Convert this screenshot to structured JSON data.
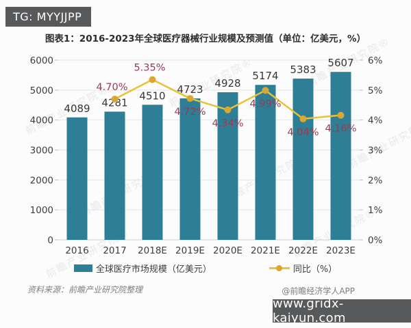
{
  "header": {
    "badge": "TG: MYYJJPP"
  },
  "chart": {
    "title": "图表1：2016-2023年全球医疗器械行业规模及预测值（单位：亿美元，%）"
  },
  "chart_data": {
    "type": "bar+line",
    "title": "图表1：2016-2023年全球医疗器械行业规模及预测值（单位：亿美元，%）",
    "categories": [
      "2016",
      "2017",
      "2018E",
      "2019E",
      "2020E",
      "2021E",
      "2022E",
      "2023E"
    ],
    "series": [
      {
        "name": "全球医疗市场规模（亿美元）",
        "type": "bar",
        "values": [
          4089,
          4281,
          4510,
          4723,
          4928,
          5174,
          5383,
          5607
        ],
        "color": "#2e7e96",
        "label_color": "#373737"
      },
      {
        "name": "同比（%）",
        "type": "line",
        "values": [
          null,
          4.7,
          5.35,
          4.72,
          4.34,
          4.99,
          4.04,
          4.16
        ],
        "point_labels": [
          null,
          "4.70%",
          "5.35%",
          "4.72%",
          "4.34%",
          "4.99%",
          "4.04%",
          "4.16%"
        ],
        "label_pos": [
          null,
          "above",
          "above",
          "below",
          "below",
          "below",
          "below",
          "below"
        ],
        "color": "#e6c338",
        "marker_color": "#d9a733",
        "label_color": "#993b51"
      }
    ],
    "left_axis": {
      "min": 0,
      "max": 6000,
      "step": 1000,
      "ticks": [
        "0",
        "1000",
        "2000",
        "3000",
        "4000",
        "5000",
        "6000"
      ]
    },
    "right_axis": {
      "min": 0,
      "max": 6,
      "step": 1,
      "ticks": [
        "0%",
        "1%",
        "2%",
        "3%",
        "4%",
        "5%",
        "6%"
      ]
    },
    "grid": true,
    "legend_position": "bottom"
  },
  "footer": {
    "source": "资料来源：前瞻产业研究院整理",
    "credit": "@前瞻经济学人APP"
  },
  "watermark": {
    "diagonal_text": "前瞻产业研究院",
    "site_badge": "www.gridx-kaiyun.com"
  }
}
